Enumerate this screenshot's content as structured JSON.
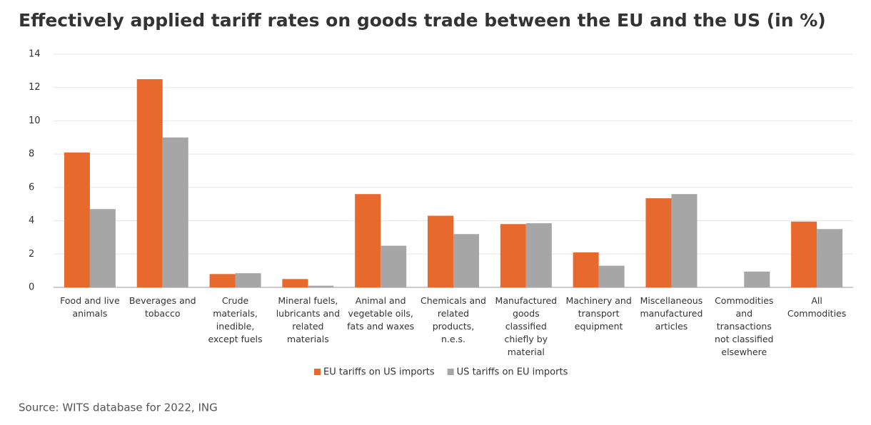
{
  "chart_data": {
    "type": "bar",
    "title": "Effectively applied tariff rates on goods trade between the EU and the US (in %)",
    "source": "Source: WITS database for 2022, ING",
    "categories": [
      "Food and live animals",
      "Beverages and tobacco",
      "Crude materials, inedible, except fuels",
      "Mineral fuels, lubricants and related materials",
      "Animal and vegetable oils, fats and waxes",
      "Chemicals and related products, n.e.s.",
      "Manufactured goods classified chiefly by material",
      "Machinery and transport equipment",
      "Miscellaneous manufactured articles",
      "Commodities and transactions not classified elsewhere",
      "All Commodities"
    ],
    "series": [
      {
        "name": "EU tariffs on US imports",
        "color": "#e8692d",
        "values": [
          8.1,
          12.5,
          0.8,
          0.5,
          5.6,
          4.3,
          3.8,
          2.1,
          5.35,
          0,
          3.95
        ]
      },
      {
        "name": "US tariffs on EU imports",
        "color": "#a6a6a6",
        "values": [
          4.7,
          9.0,
          0.85,
          0.1,
          2.5,
          3.2,
          3.85,
          1.3,
          5.6,
          0.95,
          3.5
        ]
      }
    ],
    "ylim": [
      0,
      14
    ],
    "yticks": [
      0,
      2,
      4,
      6,
      8,
      10,
      12,
      14
    ],
    "grid": true,
    "legend": "bottom"
  }
}
